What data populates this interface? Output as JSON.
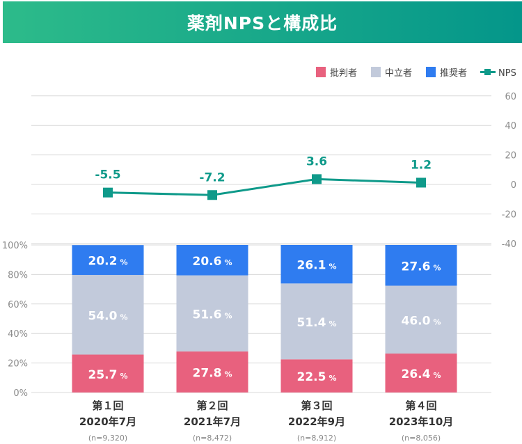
{
  "header": {
    "title": "薬剤NPSと構成比"
  },
  "colors": {
    "detractor": "#e8617e",
    "passive": "#c2cadb",
    "promoter": "#2f7cf0",
    "nps": "#0f9a8a",
    "grid": "#d9d9d9",
    "axis_text": "#8a8a8a"
  },
  "chart_data": {
    "type": "bar",
    "stacked": true,
    "title": "薬剤NPSと構成比",
    "legend": {
      "placement": "top-right",
      "entries": [
        "批判者",
        "中立者",
        "推奨者",
        "NPS"
      ]
    },
    "categories": [
      {
        "round": "第１回",
        "date": "2020年7月",
        "n": "(n=9,320)"
      },
      {
        "round": "第２回",
        "date": "2021年7月",
        "n": "(n=8,472)"
      },
      {
        "round": "第３回",
        "date": "2022年9月",
        "n": "(n=8,912)"
      },
      {
        "round": "第４回",
        "date": "2023年10月",
        "n": "(n=8,056)"
      }
    ],
    "series": [
      {
        "name": "批判者",
        "key": "detractor",
        "values": [
          25.7,
          27.8,
          22.5,
          26.4
        ]
      },
      {
        "name": "中立者",
        "key": "passive",
        "values": [
          54.0,
          51.6,
          51.4,
          46.0
        ]
      },
      {
        "name": "推奨者",
        "key": "promoter",
        "values": [
          20.2,
          20.6,
          26.1,
          27.6
        ]
      }
    ],
    "nps": {
      "name": "NPS",
      "values": [
        -5.5,
        -7.2,
        3.6,
        1.2
      ],
      "labels": [
        "-5.5",
        "-7.2",
        "3.6",
        "1.2"
      ]
    },
    "left_axis": {
      "ylim": [
        0,
        100
      ],
      "ticks": [
        "0%",
        "20%",
        "40%",
        "60%",
        "80%",
        "100%"
      ]
    },
    "right_axis": {
      "ylim": [
        -40,
        60
      ],
      "ticks": [
        "-40",
        "-20",
        "0",
        "20",
        "40",
        "60"
      ]
    },
    "value_suffix": "%"
  }
}
